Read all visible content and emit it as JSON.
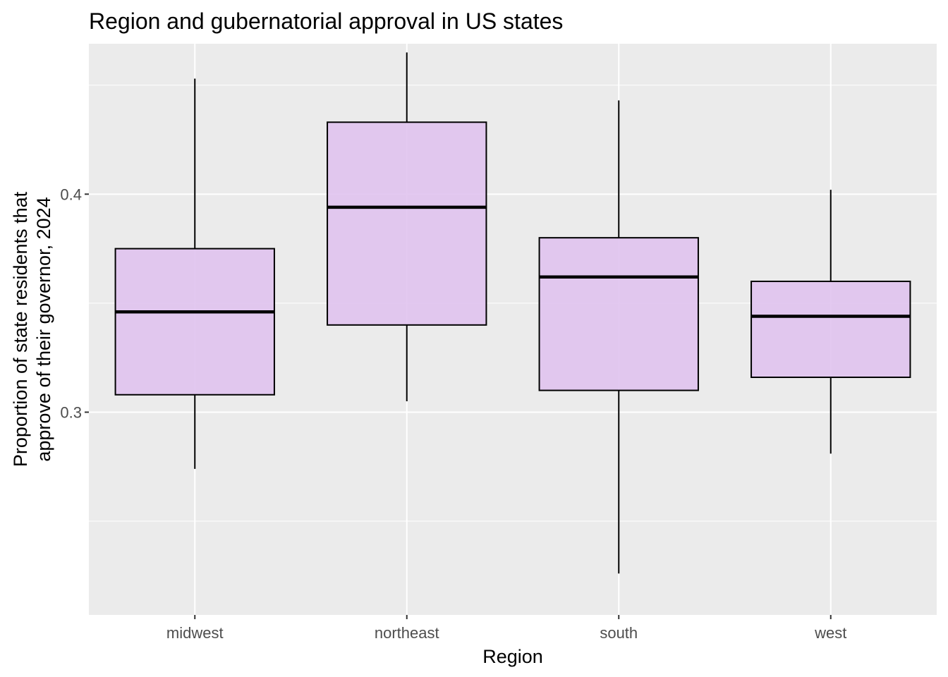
{
  "chart_data": {
    "type": "boxplot",
    "title": "Region and gubernatorial approval in US states",
    "xlabel": "Region",
    "ylabel_lines": [
      "Proportion of state residents that",
      "approve of their governor, 2024"
    ],
    "ylim": [
      0.207,
      0.469
    ],
    "y_ticks": [
      0.3,
      0.4
    ],
    "y_tick_labels": [
      "0.3",
      "0.4"
    ],
    "y_minor_ticks": [
      0.25,
      0.35,
      0.45
    ],
    "categories": [
      "midwest",
      "northeast",
      "south",
      "west"
    ],
    "boxes": [
      {
        "category": "midwest",
        "whisker_low": 0.274,
        "q1": 0.308,
        "median": 0.346,
        "q3": 0.375,
        "whisker_high": 0.453
      },
      {
        "category": "northeast",
        "whisker_low": 0.305,
        "q1": 0.34,
        "median": 0.394,
        "q3": 0.433,
        "whisker_high": 0.465
      },
      {
        "category": "south",
        "whisker_low": 0.226,
        "q1": 0.31,
        "median": 0.362,
        "q3": 0.38,
        "whisker_high": 0.443
      },
      {
        "category": "west",
        "whisker_low": 0.281,
        "q1": 0.316,
        "median": 0.344,
        "q3": 0.36,
        "whisker_high": 0.402
      }
    ],
    "fill_color": "#dfc2ee",
    "panel_color": "#ebebeb",
    "grid_color": "#ffffff",
    "grid": true,
    "legend": "none"
  }
}
